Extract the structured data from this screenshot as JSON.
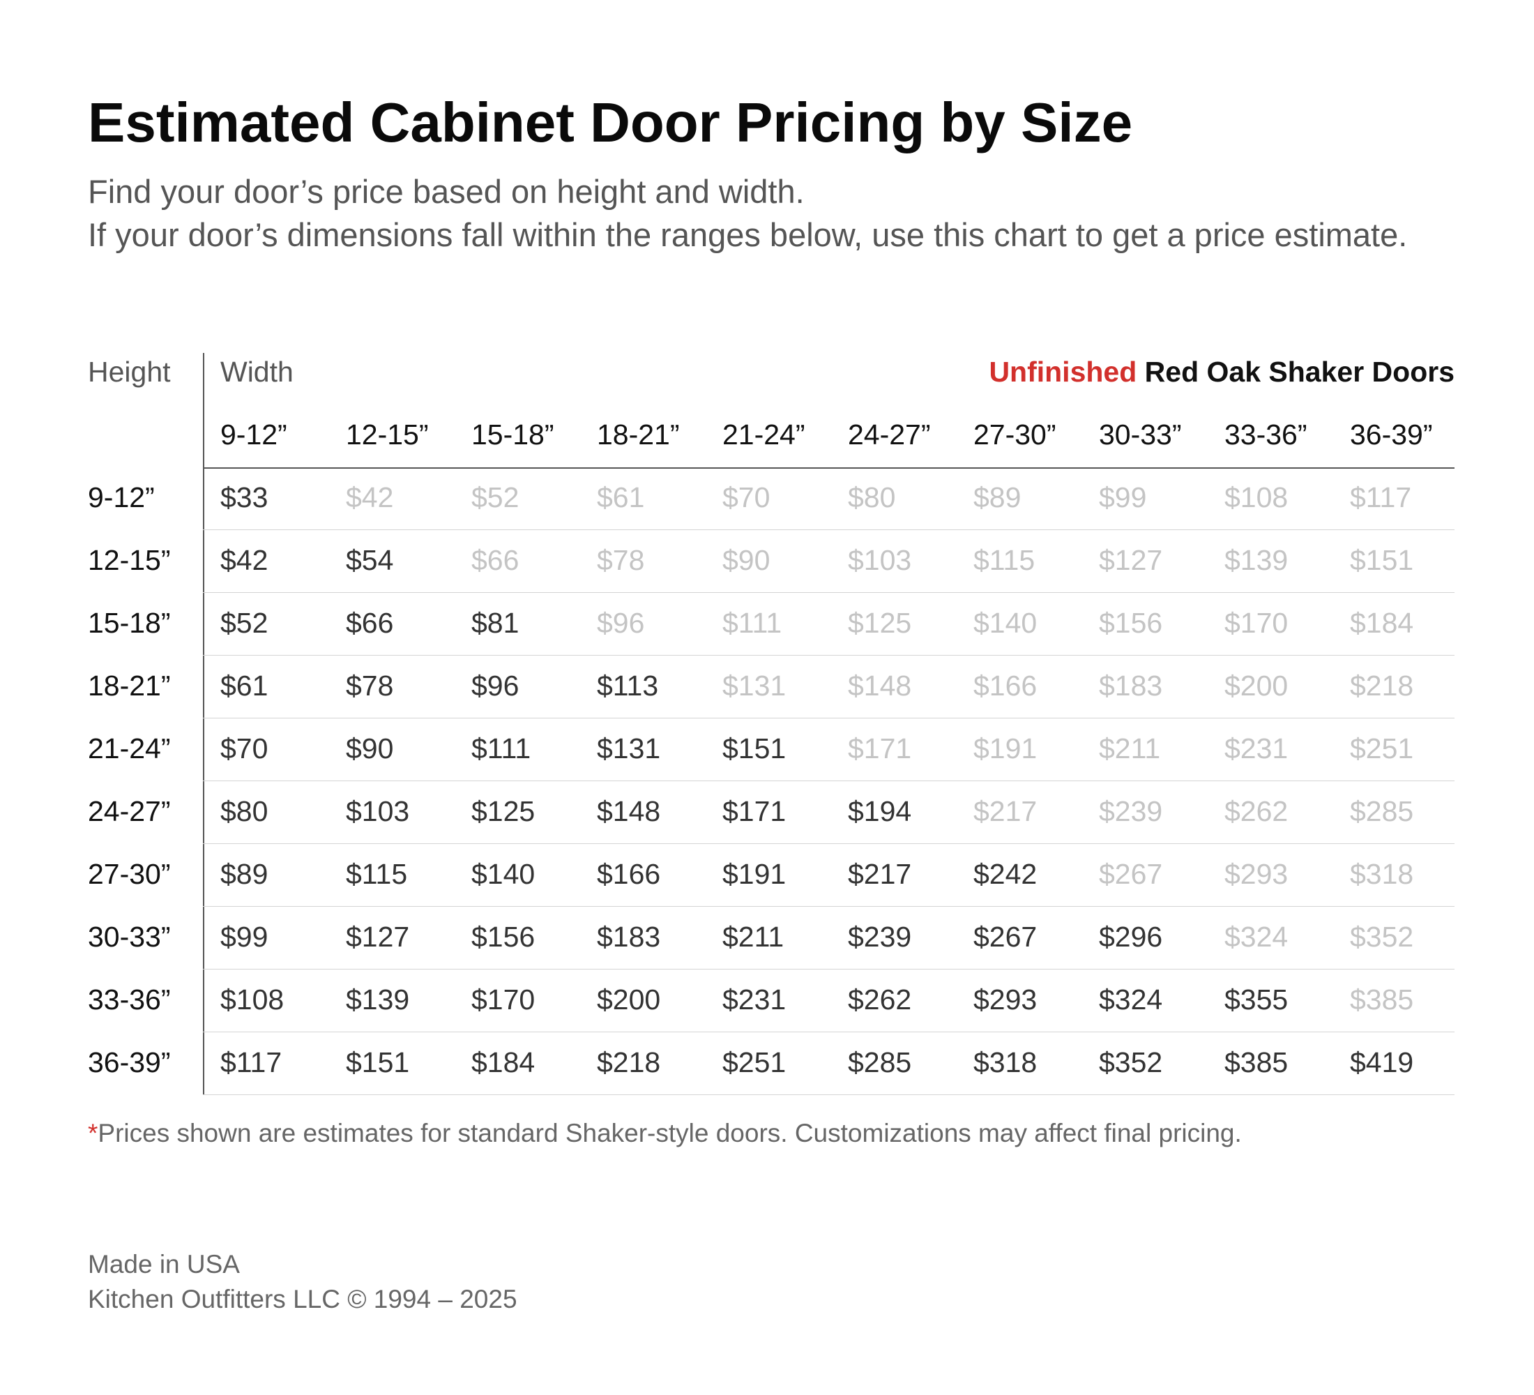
{
  "title": "Estimated Cabinet Door Pricing by Size",
  "subtitle": [
    "Find your door’s price based on height and width.",
    "If your door’s dimensions fall within the ranges below, use this chart to get a price estimate."
  ],
  "table": {
    "row_axis_label": "Height",
    "col_axis_label": "Width",
    "product": {
      "accent_word": "Unfinished",
      "name": " Red Oak Shaker Doors"
    },
    "columns": [
      "9-12”",
      "12-15”",
      "15-18”",
      "18-21”",
      "21-24”",
      "24-27”",
      "27-30”",
      "30-33”",
      "33-36”",
      "36-39”"
    ],
    "rows": [
      {
        "height": "9-12”",
        "prices": [
          "$33",
          "$42",
          "$52",
          "$61",
          "$70",
          "$80",
          "$89",
          "$99",
          "$108",
          "$117"
        ]
      },
      {
        "height": "12-15”",
        "prices": [
          "$42",
          "$54",
          "$66",
          "$78",
          "$90",
          "$103",
          "$115",
          "$127",
          "$139",
          "$151"
        ]
      },
      {
        "height": "15-18”",
        "prices": [
          "$52",
          "$66",
          "$81",
          "$96",
          "$111",
          "$125",
          "$140",
          "$156",
          "$170",
          "$184"
        ]
      },
      {
        "height": "18-21”",
        "prices": [
          "$61",
          "$78",
          "$96",
          "$113",
          "$131",
          "$148",
          "$166",
          "$183",
          "$200",
          "$218"
        ]
      },
      {
        "height": "21-24”",
        "prices": [
          "$70",
          "$90",
          "$111",
          "$131",
          "$151",
          "$171",
          "$191",
          "$211",
          "$231",
          "$251"
        ]
      },
      {
        "height": "24-27”",
        "prices": [
          "$80",
          "$103",
          "$125",
          "$148",
          "$171",
          "$194",
          "$217",
          "$239",
          "$262",
          "$285"
        ]
      },
      {
        "height": "27-30”",
        "prices": [
          "$89",
          "$115",
          "$140",
          "$166",
          "$191",
          "$217",
          "$242",
          "$267",
          "$293",
          "$318"
        ]
      },
      {
        "height": "30-33”",
        "prices": [
          "$99",
          "$127",
          "$156",
          "$183",
          "$211",
          "$239",
          "$267",
          "$296",
          "$324",
          "$352"
        ]
      },
      {
        "height": "33-36”",
        "prices": [
          "$108",
          "$139",
          "$170",
          "$200",
          "$231",
          "$262",
          "$293",
          "$324",
          "$355",
          "$385"
        ]
      },
      {
        "height": "36-39”",
        "prices": [
          "$117",
          "$151",
          "$184",
          "$218",
          "$251",
          "$285",
          "$318",
          "$352",
          "$385",
          "$419"
        ]
      }
    ]
  },
  "footnote": {
    "marker": "*",
    "text": "Prices shown are estimates for standard Shaker-style doors. Customizations may affect final pricing."
  },
  "footer": {
    "origin": "Made in USA",
    "copyright": "Kitchen Outfitters LLC © 1994 – 2025"
  },
  "colors": {
    "accent": "#d2302c",
    "active_price": "#333333",
    "muted_price": "#c4c4c4"
  }
}
